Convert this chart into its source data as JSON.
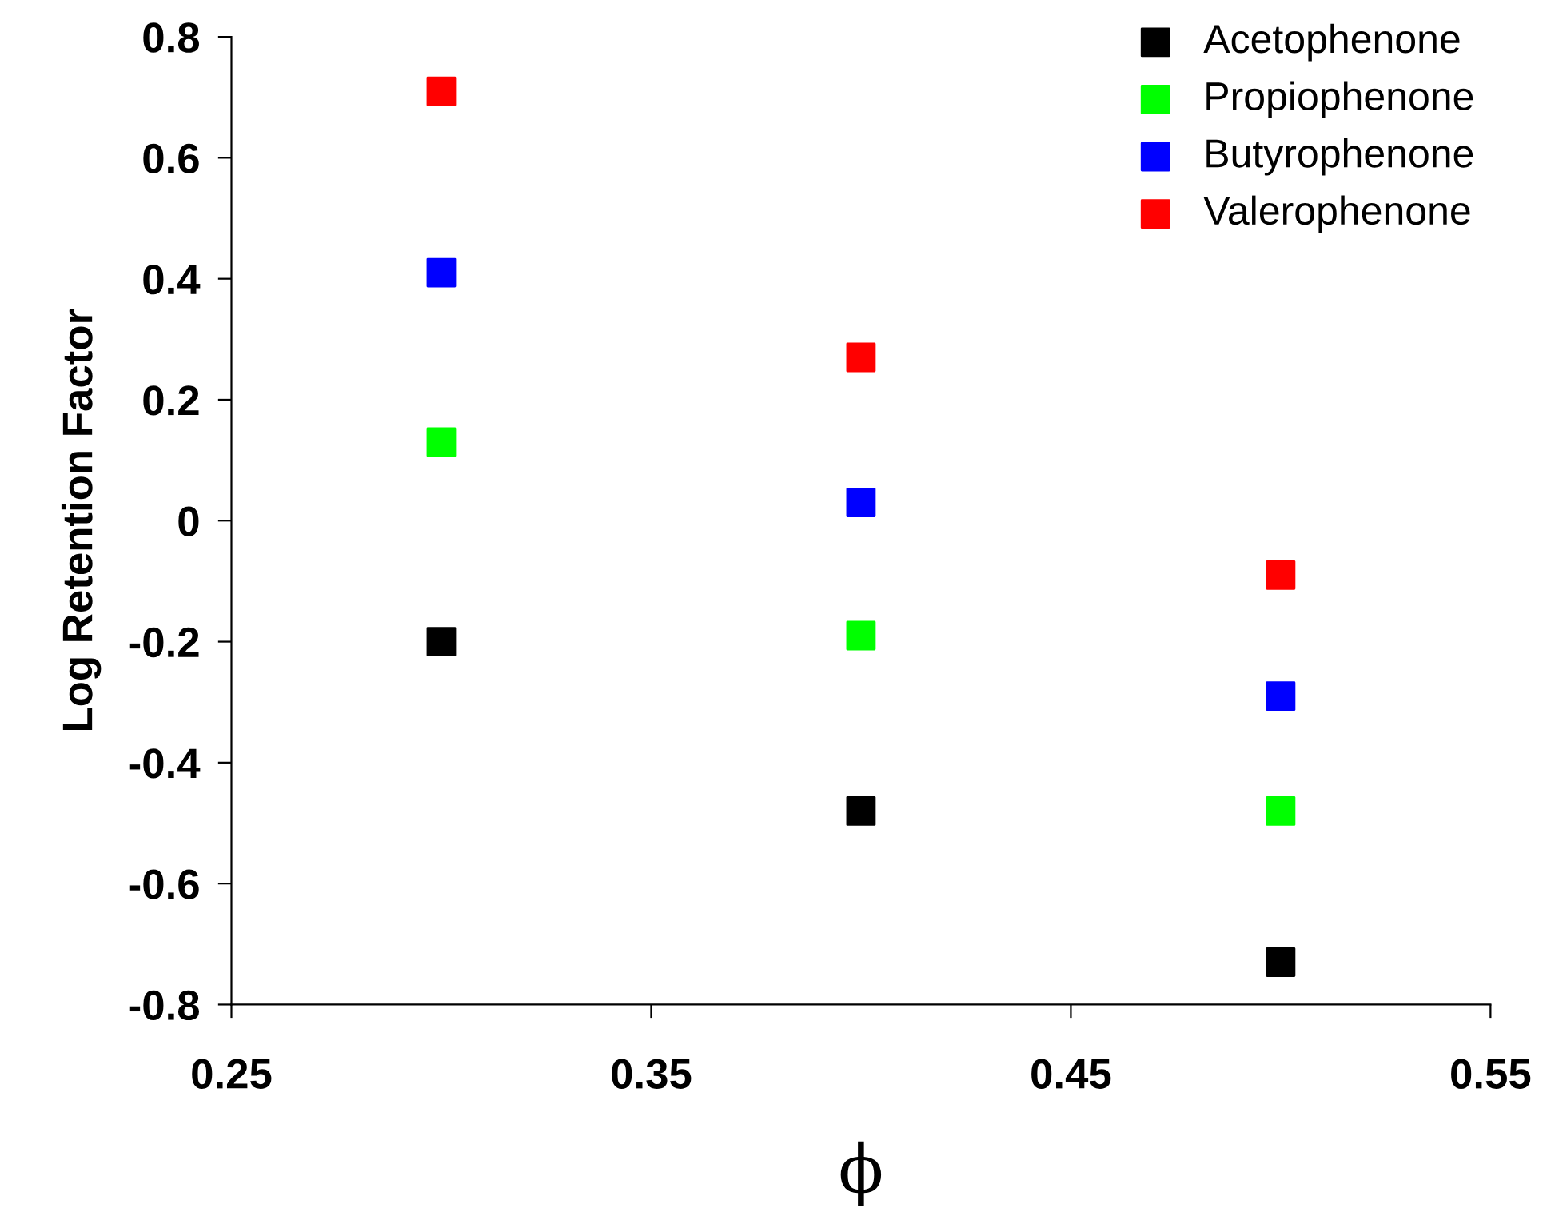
{
  "chart_data": {
    "type": "scatter",
    "xlabel": "ϕ",
    "ylabel": "Log Retention Factor",
    "x": [
      0.3,
      0.4,
      0.5
    ],
    "series": [
      {
        "name": "Acetophenone",
        "color": "#000000",
        "values": [
          -0.2,
          -0.48,
          -0.73
        ]
      },
      {
        "name": "Propiophenone",
        "color": "#00ff00",
        "values": [
          0.13,
          -0.19,
          -0.48
        ]
      },
      {
        "name": "Butyrophenone",
        "color": "#0000ff",
        "values": [
          0.41,
          0.03,
          -0.29
        ]
      },
      {
        "name": "Valerophenone",
        "color": "#ff0000",
        "values": [
          0.71,
          0.27,
          -0.09
        ]
      }
    ],
    "xlim": [
      0.25,
      0.55
    ],
    "xticks": [
      0.25,
      0.35,
      0.45,
      0.55
    ],
    "ylim": [
      -0.8,
      0.8
    ],
    "yticks": [
      -0.8,
      -0.6,
      -0.4,
      -0.2,
      0,
      0.2,
      0.4,
      0.6,
      0.8
    ],
    "marker": "square",
    "legend": "top right",
    "grid": false
  }
}
